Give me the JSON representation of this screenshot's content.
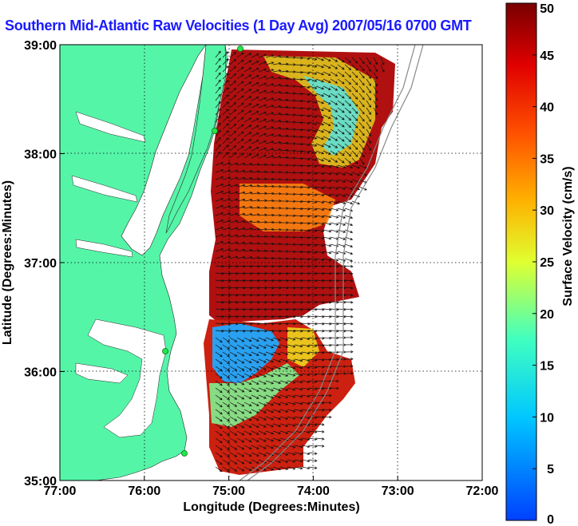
{
  "chart_data": {
    "type": "heatmap",
    "title": "Southern Mid-Atlantic Raw Velocities (1 Day Avg) 2007/05/16 0700 GMT",
    "xlabel": "Longitude (Degrees:Minutes)",
    "ylabel": "Latitude (Degrees:Minutes)",
    "colorbar_label": "Surface Velocity (cm/s)",
    "x_ticks": [
      "77:00",
      "76:00",
      "75:00",
      "74:00",
      "73:00",
      "72:00"
    ],
    "y_ticks": [
      "39:00",
      "38:00",
      "37:00",
      "36:00",
      "35:00"
    ],
    "x_range_west_deg": [
      77,
      72
    ],
    "y_range_deg": [
      35,
      39
    ],
    "colorbar_ticks": [
      "0",
      "5",
      "10",
      "15",
      "20",
      "25",
      "30",
      "35",
      "40",
      "45",
      "50"
    ],
    "colorbar_range": [
      0,
      50
    ],
    "grid": "dotted",
    "colorbar_position": "right",
    "land_color": "#55f5a8",
    "site_marker_color": "#22e84a",
    "colormap": "jet"
  }
}
